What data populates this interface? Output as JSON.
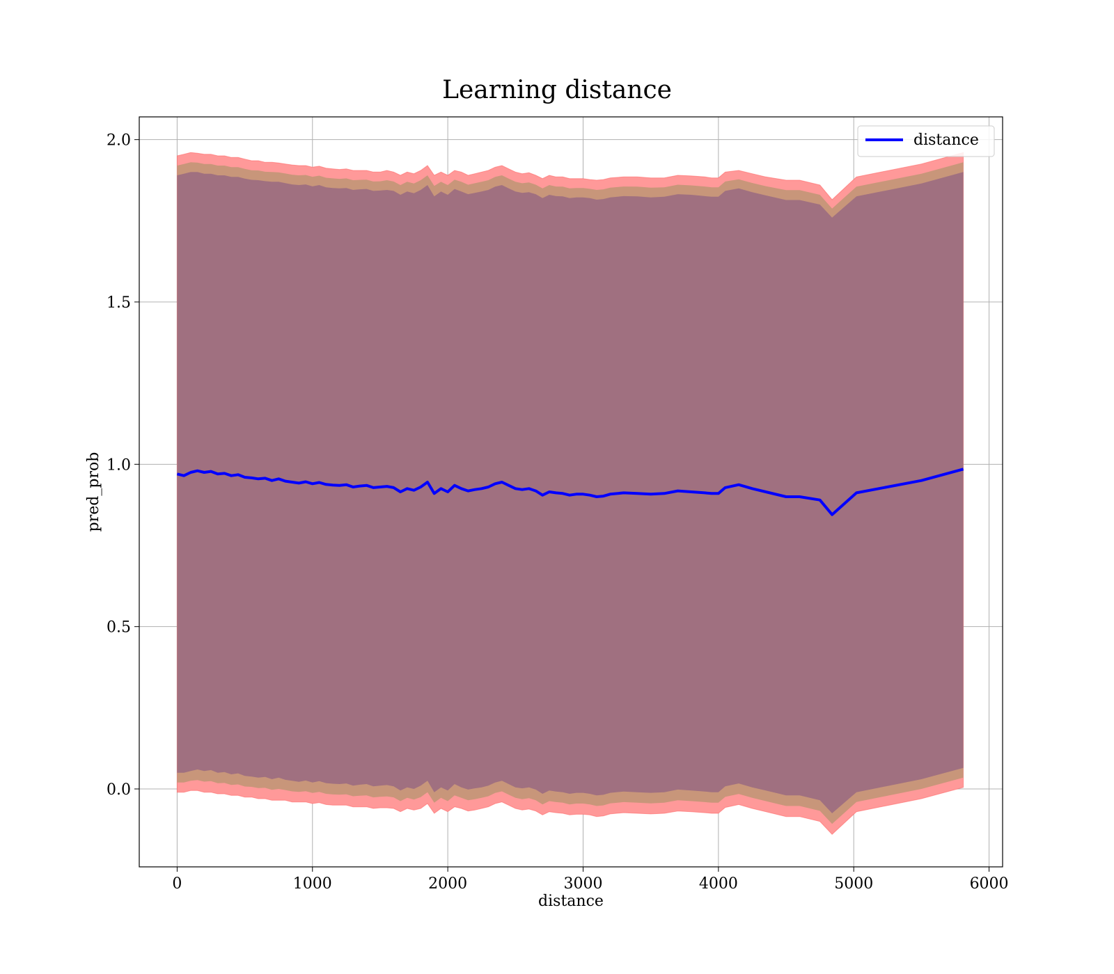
{
  "chart_data": {
    "type": "line",
    "title": "Learning distance",
    "xlabel": "distance",
    "ylabel": "pred_prob",
    "xlim": [
      -280,
      6100
    ],
    "ylim": [
      -0.24,
      2.07
    ],
    "xticks": [
      0,
      1000,
      2000,
      3000,
      4000,
      5000,
      6000
    ],
    "xtick_labels": [
      "0",
      "1000",
      "2000",
      "3000",
      "4000",
      "5000",
      "6000"
    ],
    "yticks": [
      0.0,
      0.5,
      1.0,
      1.5,
      2.0
    ],
    "ytick_labels": [
      "0.0",
      "0.5",
      "1.0",
      "1.5",
      "2.0"
    ],
    "grid": true,
    "legend": {
      "position": "top-right",
      "entries": [
        "distance"
      ]
    },
    "colors": {
      "line": "#0000ff",
      "outer_band": "#ff9999",
      "inner_band": "#a07080",
      "mid_band": "#c8967a"
    },
    "series": [
      {
        "name": "distance",
        "x": [
          0,
          50,
          100,
          150,
          200,
          250,
          300,
          350,
          400,
          450,
          500,
          550,
          600,
          650,
          700,
          750,
          800,
          850,
          900,
          950,
          1000,
          1050,
          1100,
          1150,
          1200,
          1250,
          1300,
          1350,
          1400,
          1450,
          1500,
          1550,
          1600,
          1650,
          1700,
          1750,
          1800,
          1850,
          1900,
          1950,
          2000,
          2050,
          2100,
          2150,
          2200,
          2250,
          2300,
          2350,
          2400,
          2450,
          2500,
          2550,
          2600,
          2650,
          2700,
          2750,
          2800,
          2850,
          2900,
          2950,
          3000,
          3050,
          3100,
          3150,
          3200,
          3300,
          3400,
          3500,
          3600,
          3700,
          3800,
          3900,
          3950,
          4000,
          4050,
          4150,
          4250,
          4350,
          4500,
          4600,
          4750,
          4840,
          5020,
          5500,
          5810
        ],
        "values": [
          0.97,
          0.965,
          0.975,
          0.98,
          0.975,
          0.978,
          0.97,
          0.972,
          0.965,
          0.968,
          0.96,
          0.958,
          0.955,
          0.957,
          0.95,
          0.955,
          0.948,
          0.945,
          0.942,
          0.946,
          0.94,
          0.944,
          0.938,
          0.936,
          0.935,
          0.937,
          0.93,
          0.933,
          0.935,
          0.928,
          0.93,
          0.932,
          0.928,
          0.915,
          0.925,
          0.92,
          0.93,
          0.945,
          0.91,
          0.925,
          0.915,
          0.935,
          0.925,
          0.918,
          0.922,
          0.925,
          0.93,
          0.94,
          0.945,
          0.935,
          0.925,
          0.922,
          0.925,
          0.918,
          0.905,
          0.915,
          0.912,
          0.91,
          0.905,
          0.908,
          0.908,
          0.905,
          0.9,
          0.902,
          0.908,
          0.912,
          0.91,
          0.908,
          0.91,
          0.918,
          0.915,
          0.912,
          0.91,
          0.91,
          0.928,
          0.937,
          0.925,
          0.915,
          0.9,
          0.9,
          0.89,
          0.845,
          0.912,
          0.95,
          0.985
        ],
        "band_outer_upper": [
          1.95,
          1.955,
          1.96,
          1.958,
          1.955,
          1.955,
          1.95,
          1.95,
          1.945,
          1.945,
          1.94,
          1.935,
          1.935,
          1.93,
          1.93,
          1.928,
          1.925,
          1.922,
          1.92,
          1.92,
          1.915,
          1.918,
          1.912,
          1.91,
          1.908,
          1.91,
          1.905,
          1.905,
          1.905,
          1.9,
          1.9,
          1.905,
          1.9,
          1.89,
          1.9,
          1.895,
          1.905,
          1.92,
          1.89,
          1.9,
          1.89,
          1.905,
          1.9,
          1.89,
          1.895,
          1.9,
          1.905,
          1.915,
          1.92,
          1.91,
          1.9,
          1.895,
          1.898,
          1.89,
          1.88,
          1.89,
          1.885,
          1.885,
          1.88,
          1.88,
          1.88,
          1.877,
          1.875,
          1.877,
          1.882,
          1.885,
          1.885,
          1.882,
          1.882,
          1.89,
          1.888,
          1.885,
          1.882,
          1.882,
          1.9,
          1.905,
          1.895,
          1.885,
          1.875,
          1.875,
          1.86,
          1.815,
          1.885,
          1.925,
          1.96
        ],
        "band_outer_lower": [
          -0.01,
          -0.01,
          -0.005,
          -0.005,
          -0.01,
          -0.01,
          -0.015,
          -0.015,
          -0.02,
          -0.02,
          -0.025,
          -0.025,
          -0.03,
          -0.03,
          -0.035,
          -0.035,
          -0.035,
          -0.04,
          -0.04,
          -0.04,
          -0.045,
          -0.042,
          -0.048,
          -0.05,
          -0.05,
          -0.05,
          -0.055,
          -0.055,
          -0.055,
          -0.06,
          -0.058,
          -0.058,
          -0.06,
          -0.07,
          -0.06,
          -0.065,
          -0.06,
          -0.045,
          -0.075,
          -0.06,
          -0.07,
          -0.055,
          -0.06,
          -0.068,
          -0.065,
          -0.06,
          -0.055,
          -0.045,
          -0.04,
          -0.05,
          -0.06,
          -0.065,
          -0.062,
          -0.068,
          -0.08,
          -0.07,
          -0.073,
          -0.075,
          -0.08,
          -0.078,
          -0.078,
          -0.08,
          -0.085,
          -0.083,
          -0.077,
          -0.073,
          -0.075,
          -0.077,
          -0.075,
          -0.068,
          -0.07,
          -0.073,
          -0.075,
          -0.075,
          -0.057,
          -0.048,
          -0.06,
          -0.07,
          -0.085,
          -0.085,
          -0.1,
          -0.14,
          -0.07,
          -0.03,
          0.005
        ],
        "band_inner_upper": [
          1.89,
          1.895,
          1.9,
          1.9,
          1.895,
          1.895,
          1.89,
          1.89,
          1.885,
          1.885,
          1.88,
          1.876,
          1.875,
          1.872,
          1.87,
          1.87,
          1.866,
          1.862,
          1.86,
          1.862,
          1.856,
          1.86,
          1.853,
          1.851,
          1.85,
          1.851,
          1.845,
          1.847,
          1.848,
          1.842,
          1.843,
          1.845,
          1.842,
          1.83,
          1.84,
          1.835,
          1.845,
          1.86,
          1.825,
          1.84,
          1.83,
          1.848,
          1.84,
          1.832,
          1.836,
          1.84,
          1.845,
          1.855,
          1.86,
          1.85,
          1.84,
          1.836,
          1.838,
          1.832,
          1.82,
          1.83,
          1.826,
          1.825,
          1.82,
          1.822,
          1.822,
          1.82,
          1.815,
          1.817,
          1.822,
          1.826,
          1.825,
          1.822,
          1.824,
          1.832,
          1.83,
          1.826,
          1.824,
          1.824,
          1.842,
          1.85,
          1.838,
          1.828,
          1.814,
          1.814,
          1.8,
          1.76,
          1.825,
          1.865,
          1.9
        ],
        "band_inner_lower": [
          0.05,
          0.05,
          0.055,
          0.06,
          0.055,
          0.058,
          0.05,
          0.052,
          0.045,
          0.048,
          0.04,
          0.038,
          0.035,
          0.037,
          0.03,
          0.035,
          0.028,
          0.025,
          0.022,
          0.026,
          0.02,
          0.024,
          0.018,
          0.016,
          0.015,
          0.017,
          0.01,
          0.013,
          0.015,
          0.008,
          0.01,
          0.012,
          0.008,
          -0.005,
          0.005,
          0.0,
          0.01,
          0.025,
          -0.01,
          0.005,
          -0.005,
          0.015,
          0.005,
          -0.002,
          0.002,
          0.005,
          0.01,
          0.02,
          0.025,
          0.015,
          0.005,
          0.002,
          0.005,
          -0.002,
          -0.015,
          -0.005,
          -0.008,
          -0.01,
          -0.015,
          -0.012,
          -0.012,
          -0.015,
          -0.02,
          -0.018,
          -0.012,
          -0.008,
          -0.01,
          -0.012,
          -0.01,
          -0.002,
          -0.005,
          -0.008,
          -0.01,
          -0.01,
          0.008,
          0.017,
          0.005,
          -0.005,
          -0.02,
          -0.02,
          -0.035,
          -0.075,
          -0.01,
          0.03,
          0.065
        ]
      }
    ]
  }
}
